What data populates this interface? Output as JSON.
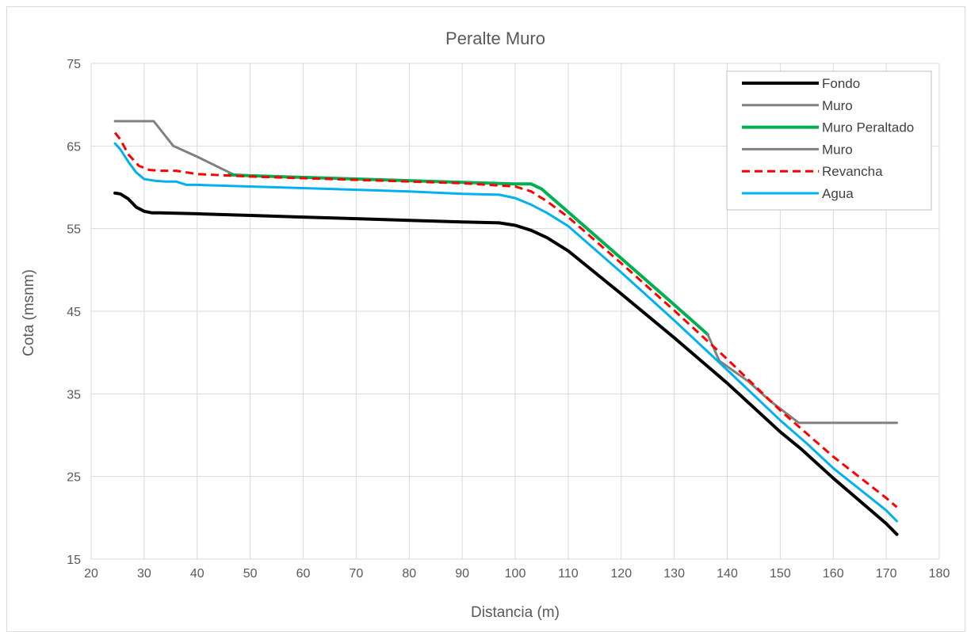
{
  "chart_data": {
    "type": "line",
    "title": "Peralte Muro",
    "xlabel": "Distancia (m)",
    "ylabel": "Cota (msnm)",
    "xlim": [
      20,
      180
    ],
    "ylim": [
      15,
      75
    ],
    "xticks": [
      20,
      30,
      40,
      50,
      60,
      70,
      80,
      90,
      100,
      110,
      120,
      130,
      140,
      150,
      160,
      170,
      180
    ],
    "yticks": [
      15,
      25,
      35,
      45,
      55,
      65,
      75
    ],
    "grid": "vertical and horizontal",
    "legend_position": "top-right",
    "series": [
      {
        "name": "Fondo",
        "color": "#000000",
        "dash": "solid",
        "width": 4,
        "points": [
          [
            24.5,
            59.3
          ],
          [
            25.5,
            59.2
          ],
          [
            27,
            58.6
          ],
          [
            28.5,
            57.6
          ],
          [
            30,
            57.1
          ],
          [
            31.5,
            56.9
          ],
          [
            33,
            56.9
          ],
          [
            40,
            56.8
          ],
          [
            50,
            56.6
          ],
          [
            60,
            56.4
          ],
          [
            70,
            56.2
          ],
          [
            80,
            56.0
          ],
          [
            90,
            55.8
          ],
          [
            97,
            55.7
          ],
          [
            100,
            55.4
          ],
          [
            103,
            54.8
          ],
          [
            106,
            53.9
          ],
          [
            110,
            52.3
          ],
          [
            120,
            47.1
          ],
          [
            130,
            41.8
          ],
          [
            140,
            36.3
          ],
          [
            150,
            30.4
          ],
          [
            154,
            28.3
          ],
          [
            160,
            24.8
          ],
          [
            170,
            19.3
          ],
          [
            172,
            18.0
          ]
        ]
      },
      {
        "name": "Muro",
        "color": "#808080",
        "dash": "solid",
        "width": 3,
        "points": [
          [
            24.5,
            68.0
          ],
          [
            31.8,
            68.0
          ],
          [
            35.5,
            65.0
          ],
          [
            40,
            63.7
          ],
          [
            47,
            61.5
          ],
          [
            50,
            61.4
          ],
          [
            100,
            60.4
          ],
          [
            103,
            60.4
          ]
        ]
      },
      {
        "name": "Muro Peraltado",
        "color": "#00B050",
        "dash": "solid",
        "width": 4,
        "points": [
          [
            46,
            61.5
          ],
          [
            50,
            61.4
          ],
          [
            100,
            60.4
          ],
          [
            103,
            60.4
          ],
          [
            105,
            59.8
          ],
          [
            110,
            57.0
          ],
          [
            120,
            51.4
          ],
          [
            130,
            45.8
          ],
          [
            136.3,
            42.2
          ]
        ]
      },
      {
        "name": "Muro",
        "color": "#808080",
        "dash": "solid",
        "width": 3,
        "points": [
          [
            136.3,
            42.2
          ],
          [
            138.5,
            39.0
          ],
          [
            144,
            36.5
          ],
          [
            148,
            34.2
          ],
          [
            150,
            33.2
          ],
          [
            153.5,
            31.5
          ],
          [
            172,
            31.5
          ]
        ]
      },
      {
        "name": "Revancha",
        "color": "#FF0000",
        "dash": "dashed",
        "width": 3,
        "points": [
          [
            24.5,
            66.6
          ],
          [
            25.5,
            65.8
          ],
          [
            27,
            64.0
          ],
          [
            29,
            62.6
          ],
          [
            31,
            62.1
          ],
          [
            33,
            62.0
          ],
          [
            36,
            62.0
          ],
          [
            40,
            61.6
          ],
          [
            50,
            61.3
          ],
          [
            60,
            61.1
          ],
          [
            70,
            60.9
          ],
          [
            80,
            60.7
          ],
          [
            90,
            60.5
          ],
          [
            100,
            60.1
          ],
          [
            103,
            59.5
          ],
          [
            106,
            58.3
          ],
          [
            110,
            56.4
          ],
          [
            120,
            50.8
          ],
          [
            130,
            45.1
          ],
          [
            140,
            39.2
          ],
          [
            150,
            33.0
          ],
          [
            155,
            30.2
          ],
          [
            160,
            27.4
          ],
          [
            170,
            22.4
          ],
          [
            172,
            21.3
          ]
        ]
      },
      {
        "name": "Agua",
        "color": "#00B0F0",
        "dash": "solid",
        "width": 3,
        "points": [
          [
            24.5,
            65.3
          ],
          [
            25.5,
            64.6
          ],
          [
            27,
            63.1
          ],
          [
            28.5,
            61.8
          ],
          [
            30,
            61.0
          ],
          [
            32,
            60.8
          ],
          [
            34,
            60.7
          ],
          [
            36,
            60.7
          ],
          [
            38,
            60.3
          ],
          [
            40,
            60.3
          ],
          [
            50,
            60.1
          ],
          [
            60,
            59.9
          ],
          [
            70,
            59.7
          ],
          [
            80,
            59.5
          ],
          [
            90,
            59.2
          ],
          [
            97,
            59.1
          ],
          [
            100,
            58.7
          ],
          [
            103,
            57.9
          ],
          [
            106,
            56.9
          ],
          [
            110,
            55.3
          ],
          [
            120,
            49.7
          ],
          [
            130,
            43.9
          ],
          [
            140,
            37.9
          ],
          [
            150,
            31.8
          ],
          [
            155,
            29.0
          ],
          [
            160,
            26.0
          ],
          [
            170,
            20.9
          ],
          [
            172,
            19.6
          ]
        ]
      }
    ]
  }
}
